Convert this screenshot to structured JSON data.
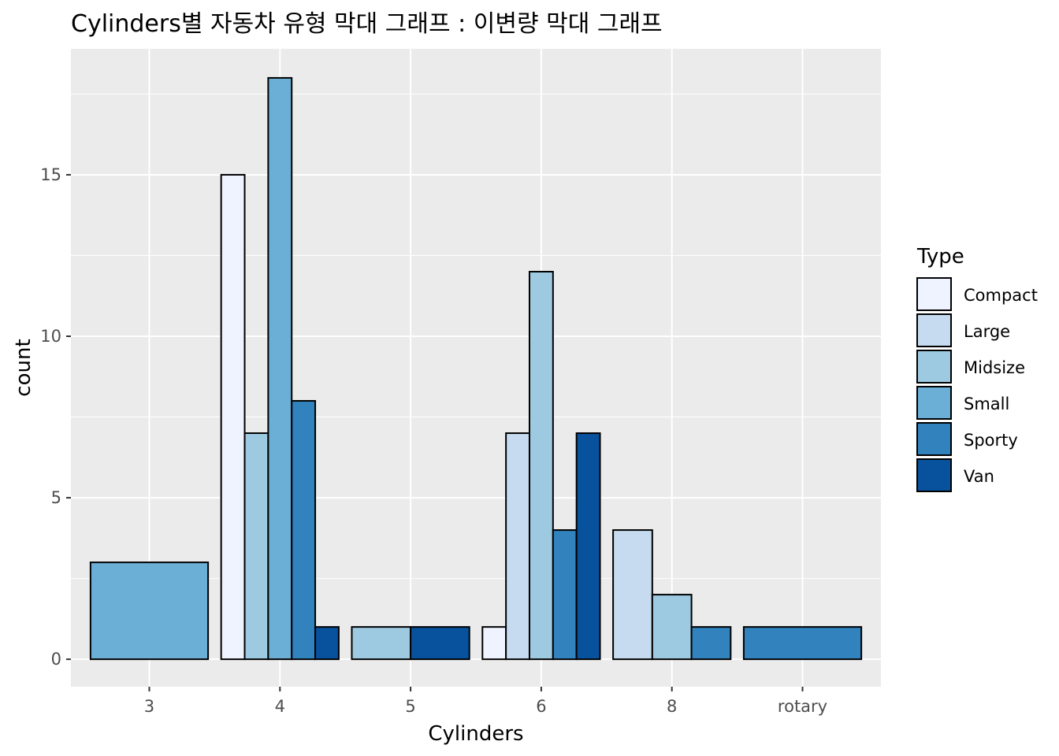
{
  "chart_data": {
    "type": "bar",
    "title": "Cylinders별 자동차 유형 막대 그래프 : 이변량 막대 그래프",
    "xlabel": "Cylinders",
    "ylabel": "count",
    "categories": [
      "3",
      "4",
      "5",
      "6",
      "8",
      "rotary"
    ],
    "y_ticks": [
      0,
      5,
      10,
      15
    ],
    "ylim": [
      -0.85,
      18.9
    ],
    "grid": true,
    "position": "dodge (preserve single)",
    "legend": {
      "title": "Type",
      "placement": "right"
    },
    "series": [
      {
        "name": "Compact",
        "color": "#eff3ff",
        "values": [
          0,
          15,
          0,
          1,
          0,
          0
        ]
      },
      {
        "name": "Large",
        "color": "#c6dbef",
        "values": [
          0,
          0,
          0,
          7,
          4,
          0
        ]
      },
      {
        "name": "Midsize",
        "color": "#9ecae1",
        "values": [
          0,
          7,
          1,
          12,
          2,
          0
        ]
      },
      {
        "name": "Small",
        "color": "#6baed6",
        "values": [
          3,
          18,
          0,
          0,
          0,
          0
        ]
      },
      {
        "name": "Sporty",
        "color": "#3182bd",
        "values": [
          0,
          8,
          0,
          4,
          1,
          1
        ]
      },
      {
        "name": "Van",
        "color": "#08519c",
        "values": [
          0,
          1,
          1,
          7,
          0,
          0
        ]
      }
    ]
  }
}
